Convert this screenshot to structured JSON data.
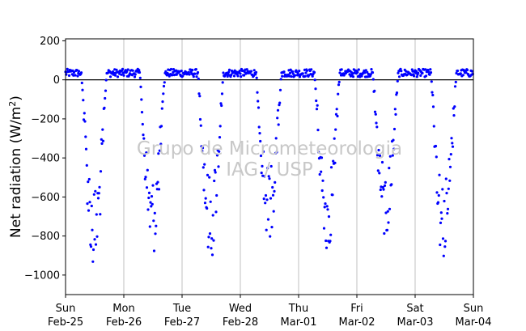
{
  "chart_data": {
    "type": "scatter",
    "ylabel": "Net radiation (W/m²)",
    "ylabel_main": "Net radiation (W/m",
    "ylabel_sup": "2",
    "ylabel_close": ")",
    "ylim": [
      -1100,
      210
    ],
    "yticks": [
      200,
      0,
      -200,
      -400,
      -600,
      -800,
      -1000
    ],
    "ytick_labels": [
      "200",
      "0",
      "−200",
      "−400",
      "−600",
      "−800",
      "−1000"
    ],
    "xlim": [
      "Feb-25",
      "Mar-04"
    ],
    "xticks": [
      {
        "day": "Sun",
        "date": "Feb-25"
      },
      {
        "day": "Mon",
        "date": "Feb-26"
      },
      {
        "day": "Tue",
        "date": "Feb-27"
      },
      {
        "day": "Wed",
        "date": "Feb-28"
      },
      {
        "day": "Thu",
        "date": "Mar-01"
      },
      {
        "day": "Fri",
        "date": "Mar-02"
      },
      {
        "day": "Sat",
        "date": "Mar-03"
      },
      {
        "day": "Sun",
        "date": "Mar-04"
      }
    ],
    "grid": "vertical",
    "reference_line": 0,
    "marker_color": "#0000ff",
    "annotations": [
      "Grupo de Micrometeorologia",
      "IAG / USP"
    ],
    "daily_minima": [
      {
        "date": "Feb-25",
        "value": -970
      },
      {
        "date": "Feb-26",
        "value": -890
      },
      {
        "date": "Feb-27",
        "value": -900
      },
      {
        "date": "Feb-28",
        "value": -810
      },
      {
        "date": "Mar-01",
        "value": -870
      },
      {
        "date": "Mar-02",
        "value": -820
      },
      {
        "date": "Mar-03",
        "value": -920
      }
    ],
    "nighttime_range": [
      0,
      65
    ]
  }
}
